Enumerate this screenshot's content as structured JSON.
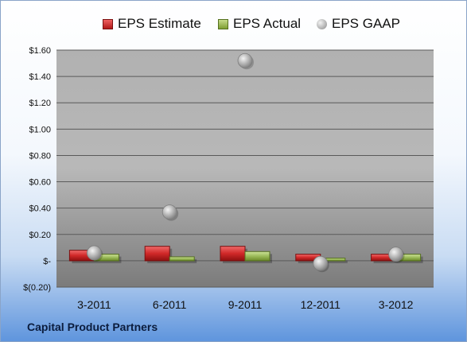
{
  "chart_data": {
    "type": "bar",
    "categories": [
      "3-2011",
      "6-2011",
      "9-2011",
      "12-2011",
      "3-2012"
    ],
    "series": [
      {
        "name": "EPS Estimate",
        "values": [
          0.08,
          0.11,
          0.11,
          0.05,
          0.05
        ],
        "color": "#c62a2a"
      },
      {
        "name": "EPS Actual",
        "values": [
          0.05,
          0.03,
          0.07,
          0.02,
          0.05
        ],
        "color": "#9bbb59"
      },
      {
        "name": "EPS GAAP",
        "values": [
          0.06,
          0.37,
          1.52,
          -0.02,
          0.05
        ],
        "color": "#a6a6a6",
        "marker": "circle"
      }
    ],
    "yticks": [
      "$(0.20)",
      "$-",
      "$0.20",
      "$0.40",
      "$0.60",
      "$0.80",
      "$1.00",
      "$1.20",
      "$1.40",
      "$1.60"
    ],
    "ytick_values": [
      -0.2,
      0,
      0.2,
      0.4,
      0.6,
      0.8,
      1.0,
      1.2,
      1.4,
      1.6
    ],
    "ylim": [
      -0.2,
      1.6
    ],
    "grid": true,
    "legend_position": "top"
  },
  "company": "Capital Product Partners"
}
